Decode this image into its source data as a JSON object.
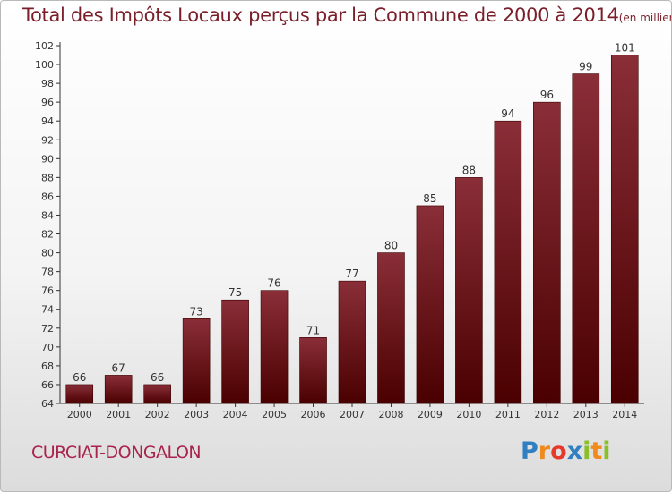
{
  "chart_data": {
    "type": "bar",
    "title": "Total des Impôts Locaux perçus par la Commune de 2000 à 2014",
    "unit_note": "(en milliers d'€)",
    "categories": [
      "2000",
      "2001",
      "2002",
      "2003",
      "2004",
      "2005",
      "2006",
      "2007",
      "2008",
      "2009",
      "2010",
      "2011",
      "2012",
      "2013",
      "2014"
    ],
    "values": [
      66,
      67,
      66,
      73,
      75,
      76,
      71,
      77,
      80,
      85,
      88,
      94,
      96,
      99,
      101
    ],
    "ylim": [
      64,
      102
    ],
    "yticks": [
      64,
      66,
      68,
      70,
      72,
      74,
      76,
      78,
      80,
      82,
      84,
      86,
      88,
      90,
      92,
      94,
      96,
      98,
      100,
      102
    ],
    "xlabel": "",
    "ylabel": "",
    "grid": false,
    "bar_color_top": "#8a2e38",
    "bar_color_bottom": "#4a0000"
  },
  "commune_name": "CURCIAT-DONGALON",
  "brand": {
    "letters": [
      "P",
      "r",
      "o",
      "x",
      "i",
      "t",
      "i"
    ],
    "colors": [
      "#2f7fc1",
      "#f08a1c",
      "#e33a2c",
      "#2f7fc1",
      "#8bbf2a",
      "#f08a1c",
      "#8bbf2a"
    ]
  }
}
